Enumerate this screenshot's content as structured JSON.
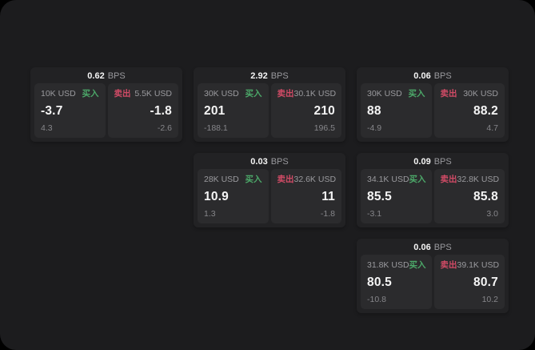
{
  "colors": {
    "surface_bg": "#1c1c1e",
    "card_bg": "#222224",
    "panel_bg": "#2b2b2d",
    "text_primary": "#f5f5f5",
    "text_secondary": "#9a9a9e",
    "text_tertiary": "#86868a",
    "buy_green": "#4ca869",
    "sell_red": "#d14b66"
  },
  "labels": {
    "bps_unit": "BPS",
    "buy": "买入",
    "sell": "卖出"
  },
  "cards": [
    {
      "row": 1,
      "col": 1,
      "bps": "0.62",
      "buy": {
        "amount": "10K USD",
        "value": "-3.7",
        "delta": "4.3"
      },
      "sell": {
        "amount": "5.5K USD",
        "value": "-1.8",
        "delta": "-2.6"
      }
    },
    {
      "row": 1,
      "col": 2,
      "bps": "2.92",
      "buy": {
        "amount": "30K USD",
        "value": "201",
        "delta": "-188.1"
      },
      "sell": {
        "amount": "30.1K USD",
        "value": "210",
        "delta": "196.5"
      }
    },
    {
      "row": 1,
      "col": 3,
      "bps": "0.06",
      "buy": {
        "amount": "30K USD",
        "value": "88",
        "delta": "-4.9"
      },
      "sell": {
        "amount": "30K USD",
        "value": "88.2",
        "delta": "4.7"
      }
    },
    {
      "row": 2,
      "col": 2,
      "bps": "0.03",
      "buy": {
        "amount": "28K USD",
        "value": "10.9",
        "delta": "1.3"
      },
      "sell": {
        "amount": "32.6K USD",
        "value": "11",
        "delta": "-1.8"
      }
    },
    {
      "row": 2,
      "col": 3,
      "bps": "0.09",
      "buy": {
        "amount": "34.1K USD",
        "value": "85.5",
        "delta": "-3.1"
      },
      "sell": {
        "amount": "32.8K USD",
        "value": "85.8",
        "delta": "3.0"
      }
    },
    {
      "row": 3,
      "col": 3,
      "bps": "0.06",
      "buy": {
        "amount": "31.8K USD",
        "value": "80.5",
        "delta": "-10.8"
      },
      "sell": {
        "amount": "39.1K USD",
        "value": "80.7",
        "delta": "10.2"
      }
    }
  ]
}
